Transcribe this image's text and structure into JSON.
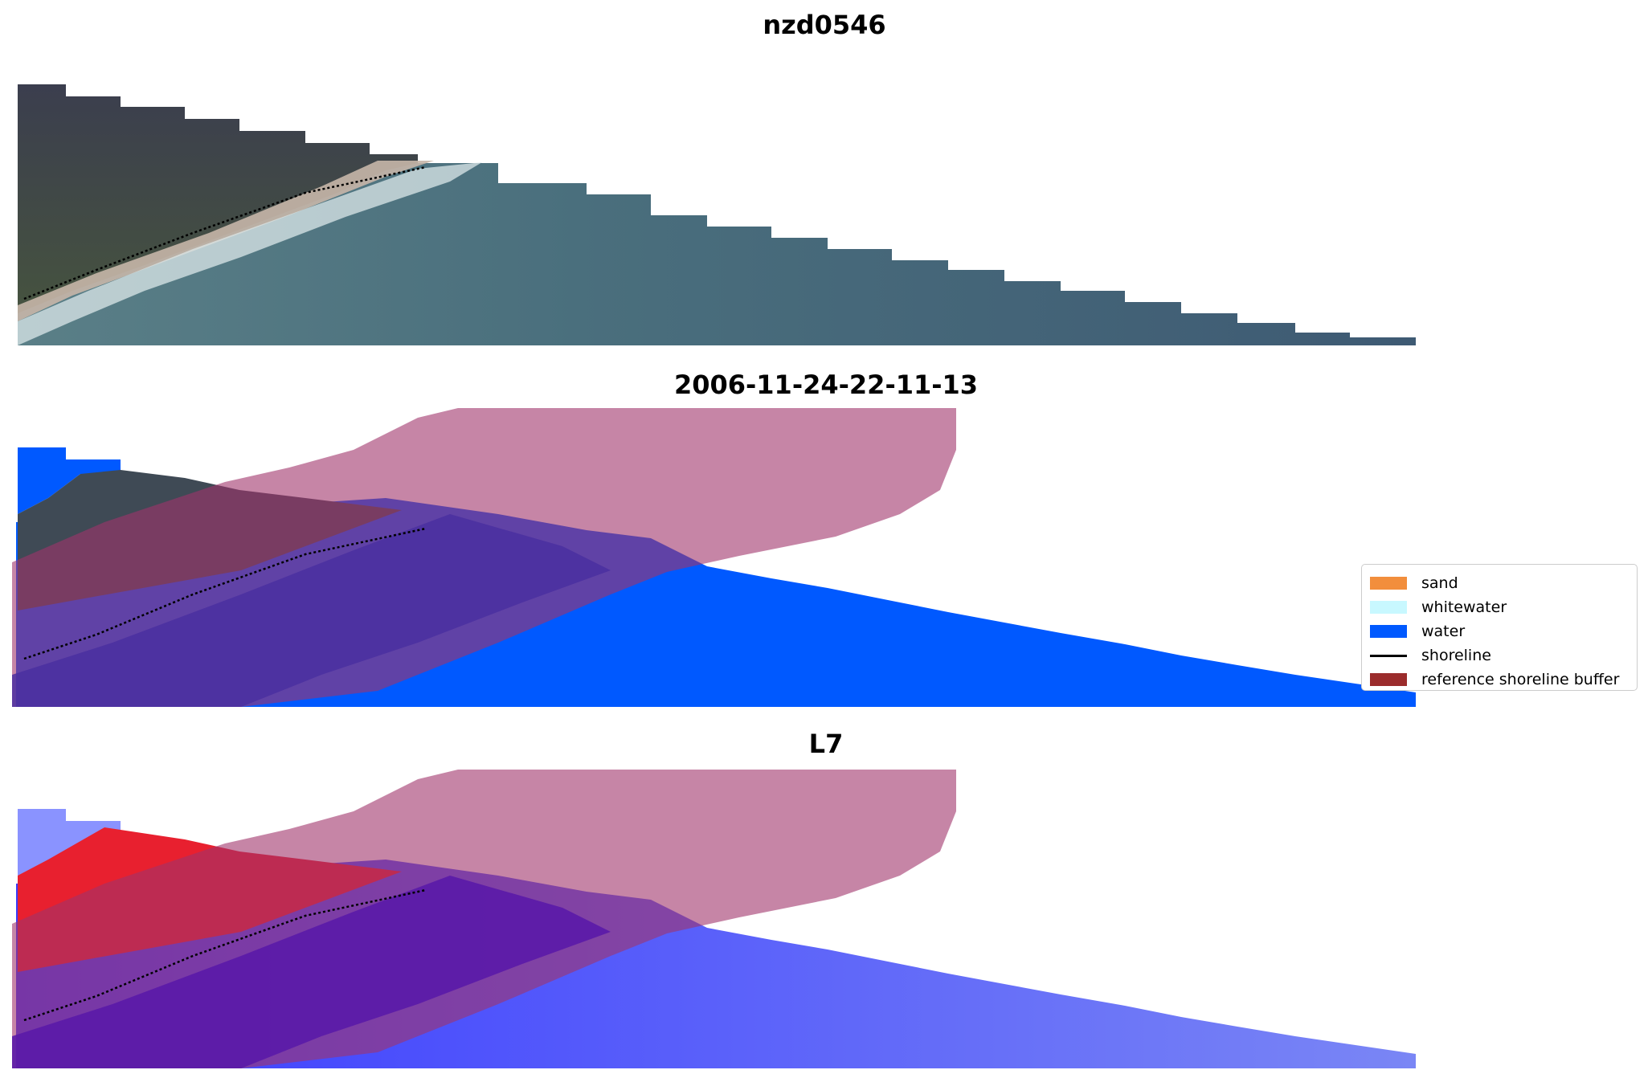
{
  "figure": {
    "titles": [
      "nzd0546",
      "2006-11-24-22-11-13",
      "L7"
    ]
  },
  "legend": {
    "placement": "center-right",
    "items": [
      {
        "label": "sand",
        "color": "#f28e3c",
        "kind": "patch"
      },
      {
        "label": "whitewater",
        "color": "#c8f8ff",
        "kind": "patch"
      },
      {
        "label": "water",
        "color": "#0059ff",
        "kind": "patch"
      },
      {
        "label": "shoreline",
        "color": "#000000",
        "kind": "line"
      },
      {
        "label": "reference shoreline buffer",
        "color": "#9b2c2c",
        "kind": "patch"
      }
    ]
  },
  "colors": {
    "land": "#3f4552",
    "sea": "#3e5f73",
    "beach": "#c9b8a8",
    "water": "#0059ff",
    "buffer": "#b96392",
    "index_red": "#e8202f",
    "index_blue": "#5060ff"
  }
}
